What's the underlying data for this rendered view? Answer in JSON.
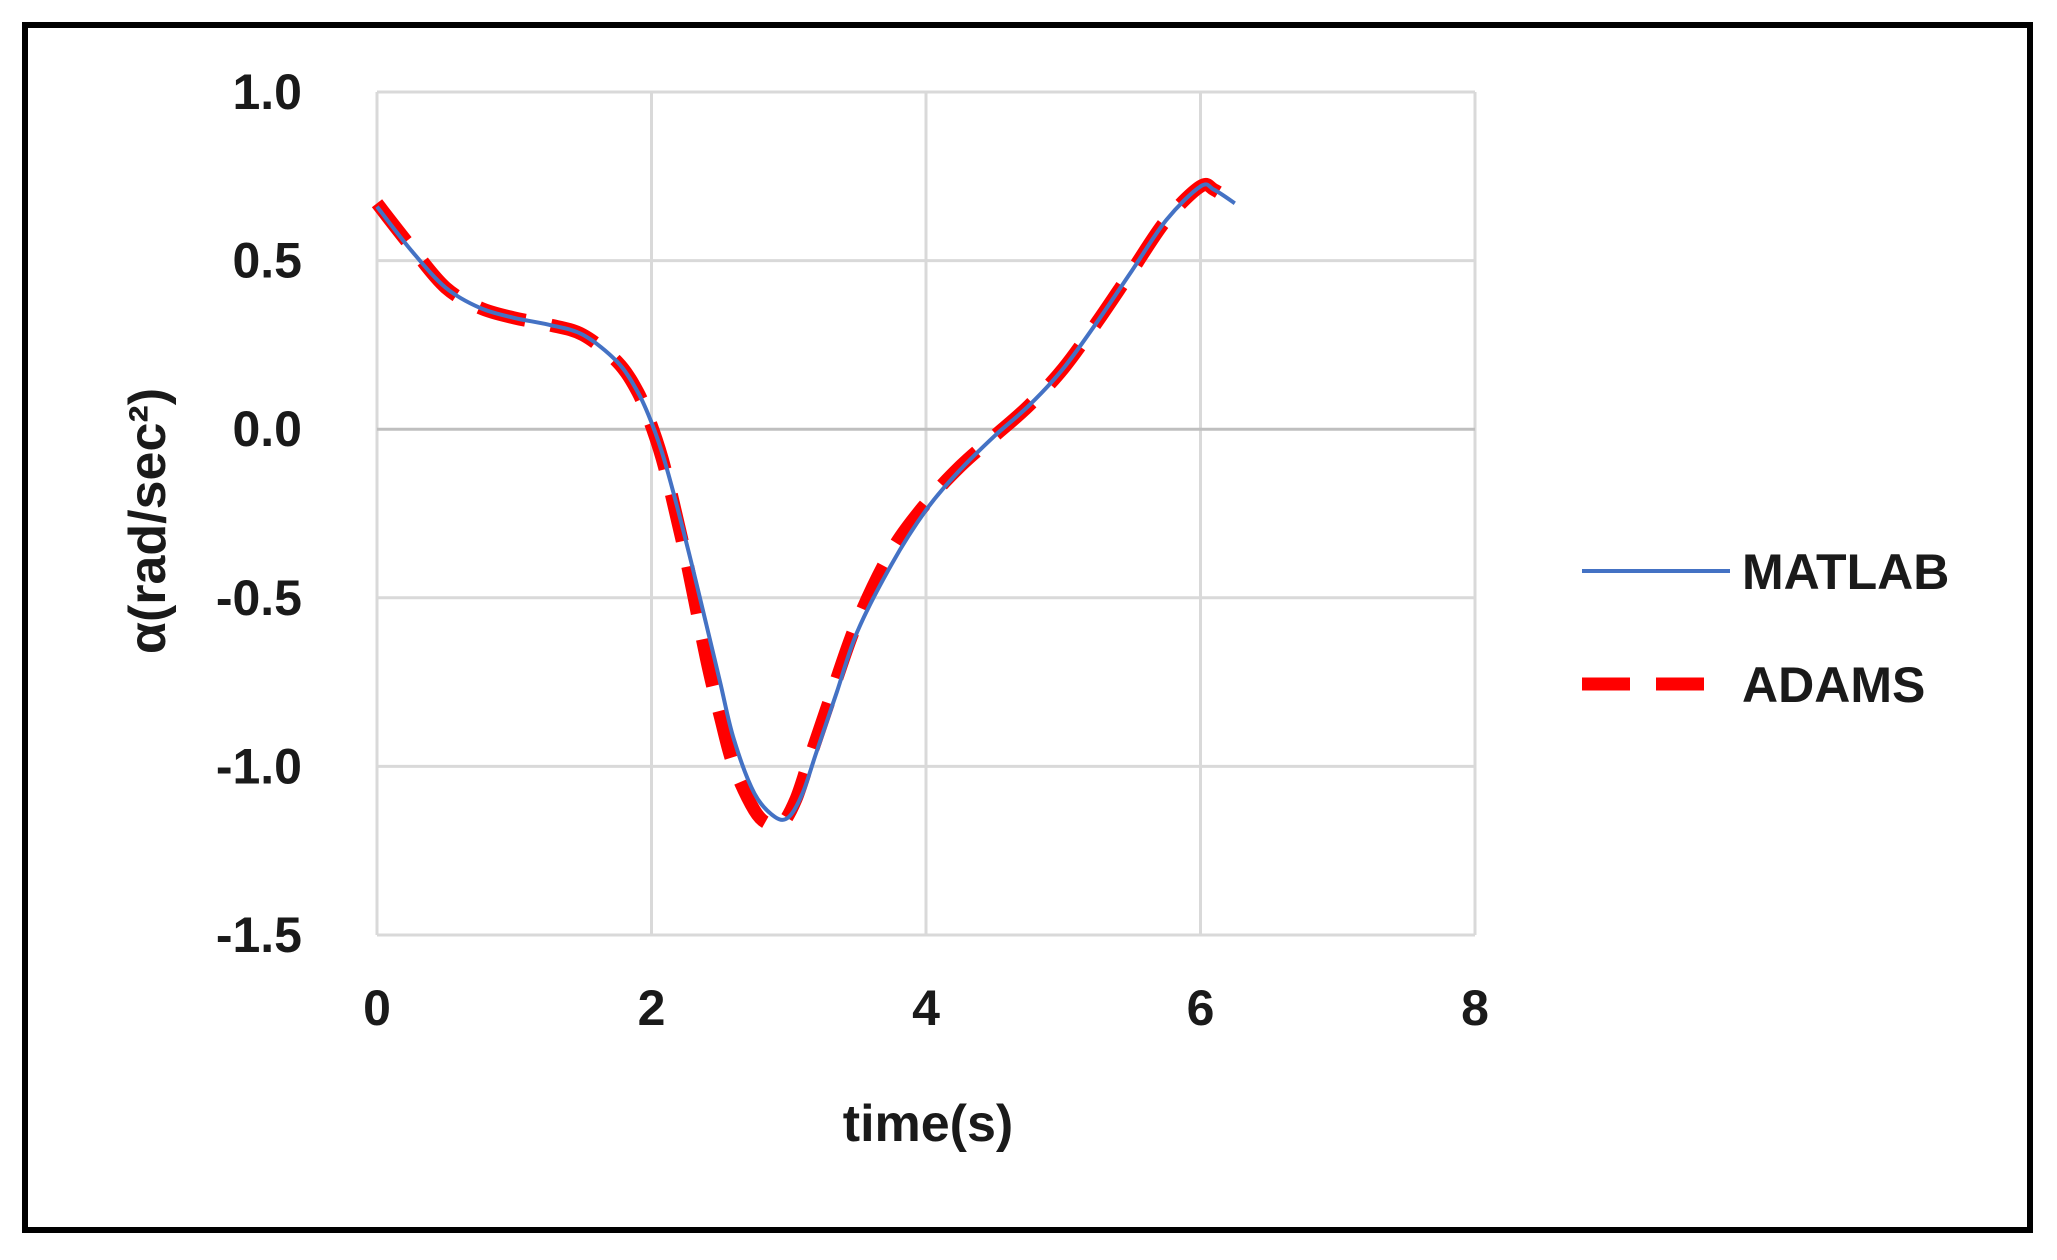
{
  "chart_data": {
    "type": "line",
    "title": "",
    "xlabel": "time(s)",
    "ylabel": "α(rad/sec²)",
    "xlim": [
      0,
      8
    ],
    "ylim": [
      -1.5,
      1.0
    ],
    "xticks": [
      0,
      2,
      4,
      6,
      8
    ],
    "yticks": [
      1.0,
      0.5,
      0.0,
      -0.5,
      -1.0,
      -1.5
    ],
    "xtick_labels": [
      "0",
      "2",
      "4",
      "6",
      "8"
    ],
    "ytick_labels": [
      "1.0",
      "0.5",
      "0.0",
      "-0.5",
      "-1.0",
      "-1.5"
    ],
    "grid": true,
    "legend_position": "right",
    "series": [
      {
        "name": "MATLAB",
        "color": "#4472C4",
        "style": "solid",
        "x": [
          0,
          0.25,
          0.5,
          0.75,
          1.0,
          1.25,
          1.5,
          1.75,
          1.9,
          2.0,
          2.1,
          2.25,
          2.4,
          2.5,
          2.6,
          2.75,
          2.9,
          3.0,
          3.1,
          3.2,
          3.35,
          3.5,
          3.75,
          4.0,
          4.25,
          4.5,
          4.75,
          5.0,
          5.25,
          5.5,
          5.75,
          6.0,
          6.1,
          6.25
        ],
        "y": [
          0.66,
          0.53,
          0.42,
          0.36,
          0.33,
          0.31,
          0.28,
          0.2,
          0.11,
          0.02,
          -0.1,
          -0.33,
          -0.58,
          -0.75,
          -0.92,
          -1.08,
          -1.15,
          -1.15,
          -1.08,
          -0.96,
          -0.78,
          -0.6,
          -0.4,
          -0.24,
          -0.12,
          -0.02,
          0.07,
          0.18,
          0.32,
          0.47,
          0.62,
          0.72,
          0.71,
          0.67
        ]
      },
      {
        "name": "ADAMS",
        "color": "#FF0000",
        "style": "dashed",
        "x": [
          0,
          0.25,
          0.5,
          0.75,
          1.0,
          1.25,
          1.5,
          1.75,
          1.9,
          2.0,
          2.1,
          2.25,
          2.4,
          2.5,
          2.6,
          2.75,
          2.85,
          2.95,
          3.05,
          3.15,
          3.3,
          3.5,
          3.75,
          4.0,
          4.25,
          4.5,
          4.75,
          5.0,
          5.25,
          5.5,
          5.75,
          6.0,
          6.1,
          6.25
        ],
        "y": [
          0.67,
          0.54,
          0.42,
          0.36,
          0.33,
          0.31,
          0.28,
          0.2,
          0.11,
          0.01,
          -0.12,
          -0.38,
          -0.68,
          -0.85,
          -1.0,
          -1.13,
          -1.17,
          -1.17,
          -1.1,
          -0.98,
          -0.8,
          -0.57,
          -0.36,
          -0.22,
          -0.11,
          -0.02,
          0.07,
          0.18,
          0.32,
          0.47,
          0.62,
          0.72,
          0.71,
          0.67
        ]
      }
    ]
  }
}
